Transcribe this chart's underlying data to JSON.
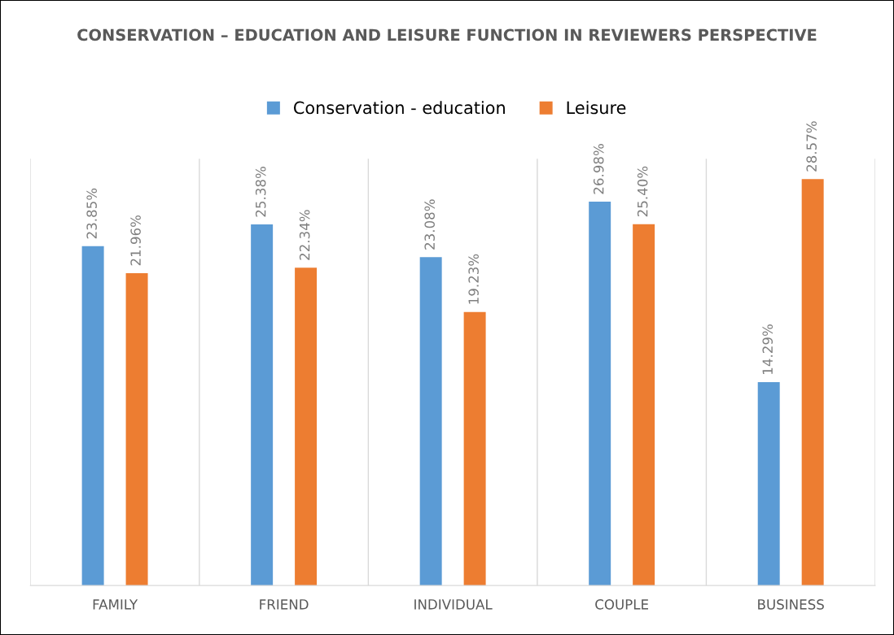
{
  "chart_data": {
    "type": "bar",
    "title": "CONSERVATION – EDUCATION AND LEISURE FUNCTION IN REVIEWERS PERSPECTIVE",
    "categories": [
      "FAMILY",
      "FRIEND",
      "INDIVIDUAL",
      "COUPLE",
      "BUSINESS"
    ],
    "series": [
      {
        "name": "Conservation - education",
        "color": "#5b9bd5",
        "values": [
          23.85,
          25.38,
          23.08,
          26.98,
          14.29
        ],
        "value_labels": [
          "23.85%",
          "25.38%",
          "23.08%",
          "26.98%",
          "14.29%"
        ]
      },
      {
        "name": "Leisure",
        "color": "#ed7d31",
        "values": [
          21.96,
          22.34,
          19.23,
          25.4,
          28.57
        ],
        "value_labels": [
          "21.96%",
          "22.34%",
          "19.23%",
          "25.40%",
          "28.57%"
        ]
      }
    ],
    "grid": "x",
    "legend": "top",
    "tick_labels": "x"
  }
}
